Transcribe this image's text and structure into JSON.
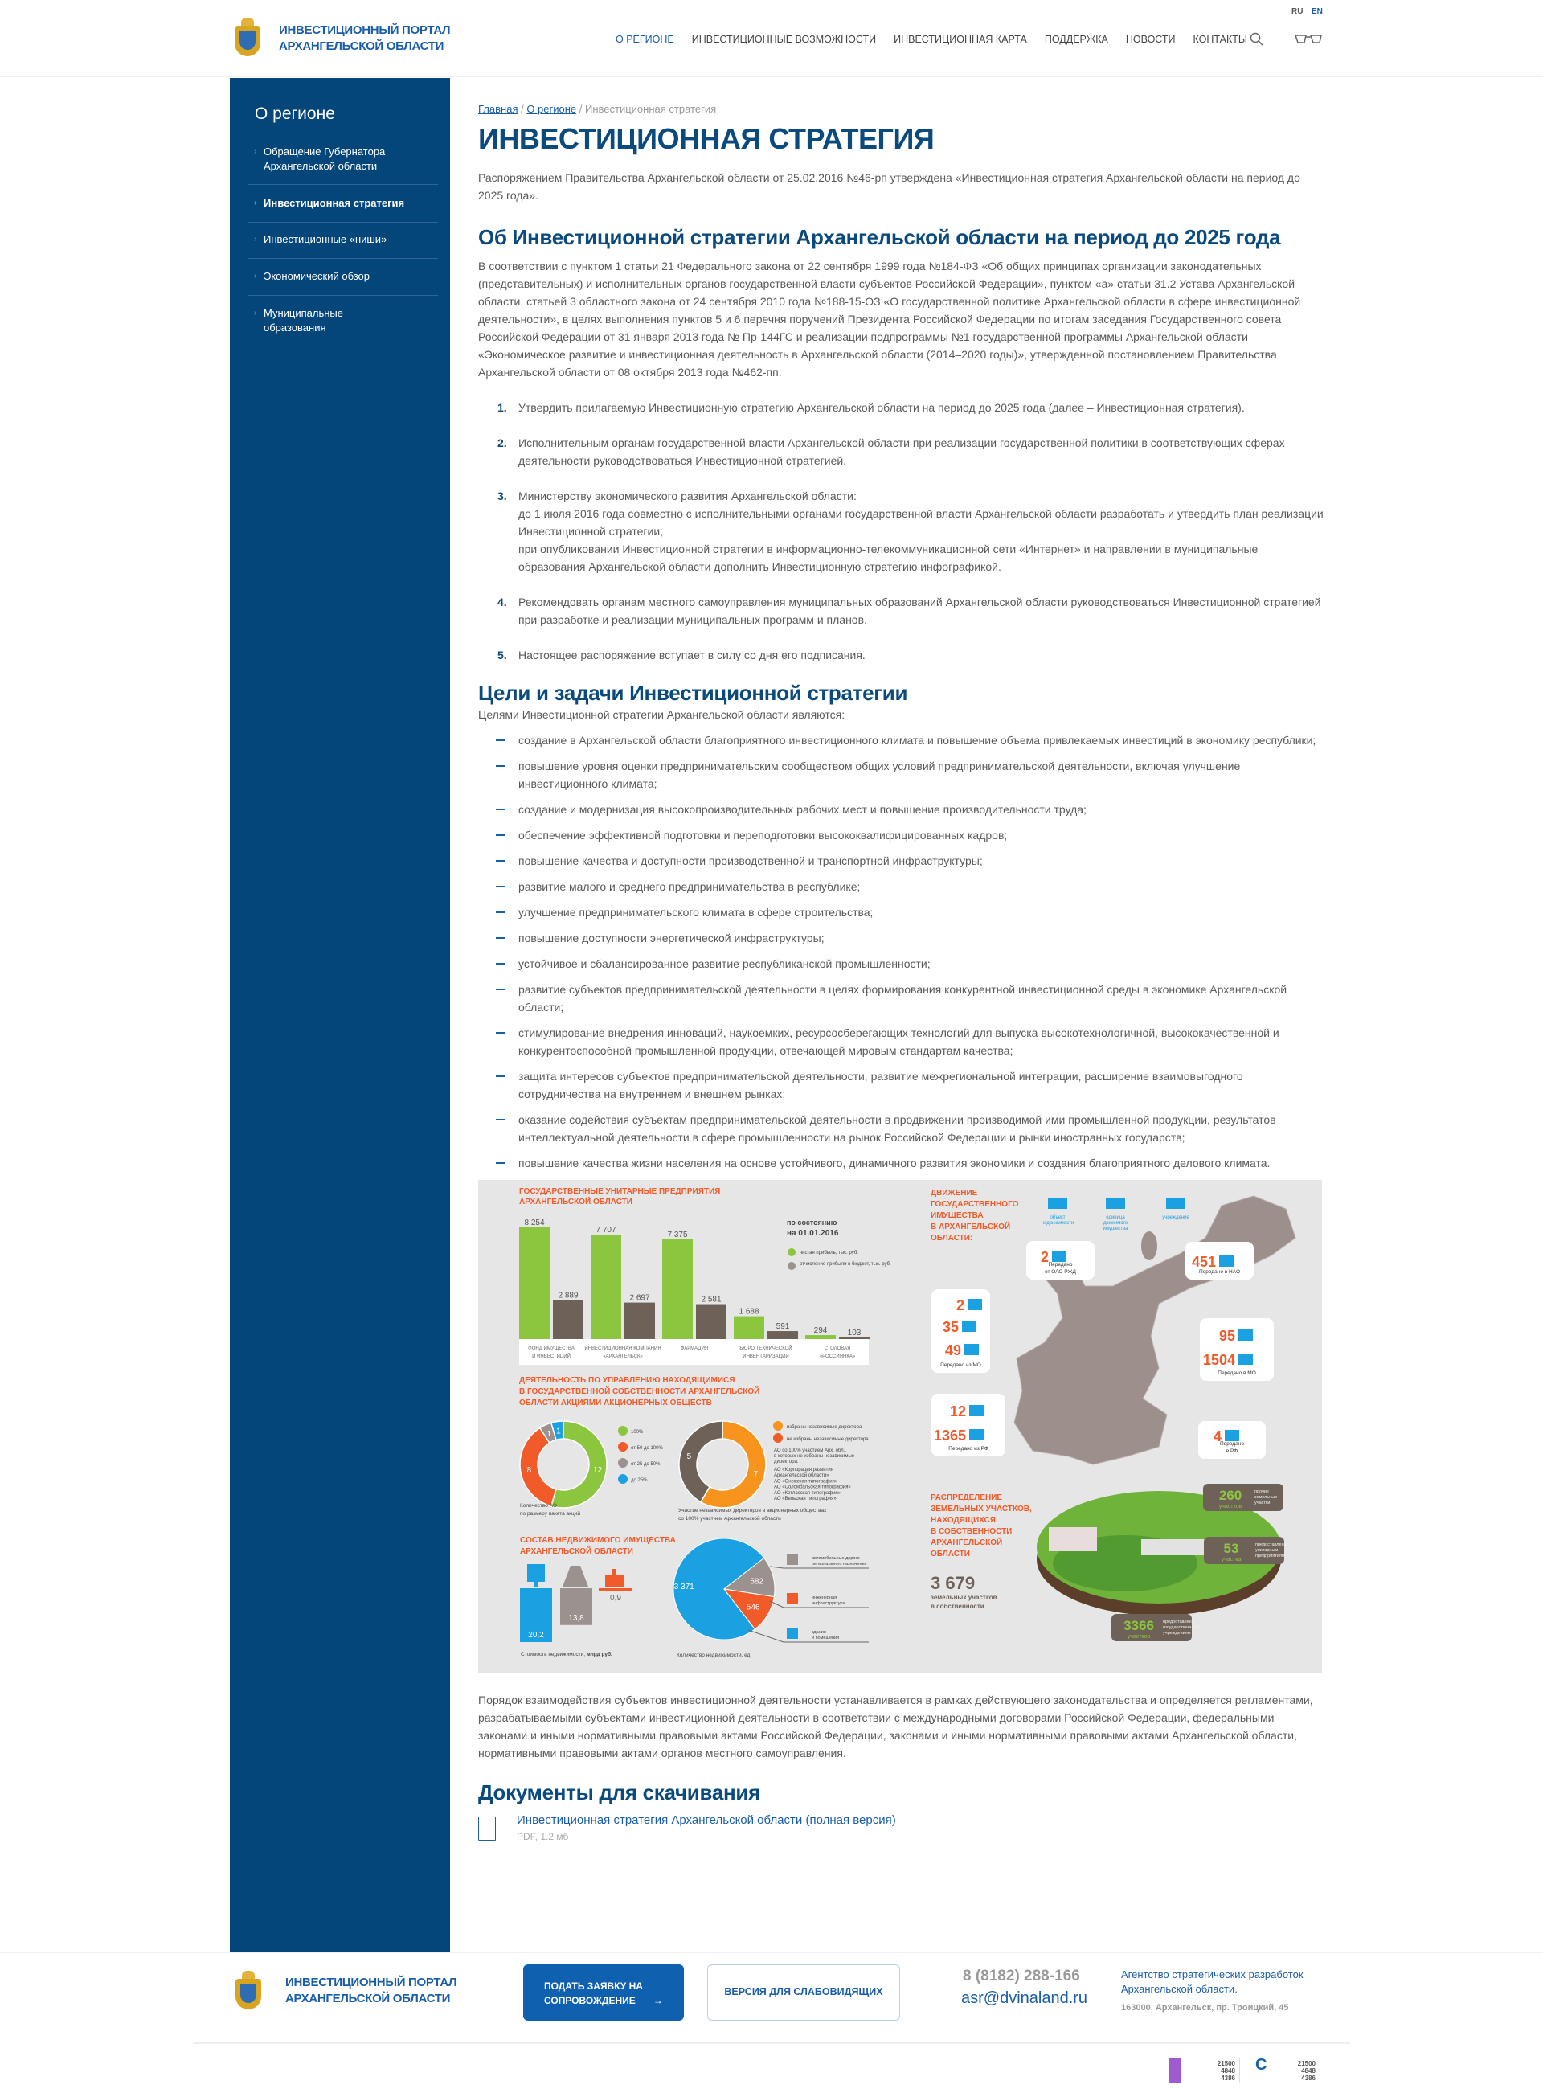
{
  "header": {
    "logo_line1": "ИНВЕСТИЦИОННЫЙ ПОРТАЛ",
    "logo_line2": "АРХАНГЕЛЬСКОЙ ОБЛАСТИ",
    "lang_ru": "RU",
    "lang_en": "EN",
    "nav": [
      "О регионе",
      "Инвестиционные возможности",
      "Инвестиционная карта",
      "Поддержка",
      "Новости",
      "Контакты"
    ],
    "search_icon": "search-icon",
    "accessibility_icon": "glasses-icon"
  },
  "sidebar": {
    "title": "О регионе",
    "items": [
      {
        "label": "Обращение Губернатора Архангельской области"
      },
      {
        "label": "Инвестиционная стратегия",
        "active": true
      },
      {
        "label": "Инвестиционные «ниши»"
      },
      {
        "label": "Экономический обзор"
      },
      {
        "label": "Муниципальные образования"
      }
    ]
  },
  "breadcrumb": {
    "home": "Главная",
    "section": "О регионе",
    "current": "Инвестиционная стратегия"
  },
  "page": {
    "title": "ИНВЕСТИЦИОННАЯ СТРАТЕГИЯ",
    "intro": "Распоряжением Правительства Архангельской области от 25.02.2016 №46-рп утверждена «Инвестиционная стратегия Архангельской области на период до 2025 года».",
    "about_heading": "Об Инвестиционной стратегии Архангельской области на период до 2025 года",
    "about_text": "В соответствии с пунктом 1 статьи 21 Федерального закона от 22 сентября 1999 года №184-ФЗ «Об общих принципах организации законодательных (представительных) и исполнительных органов государственной власти субъектов Российской Федерации», пунктом «а» статьи 31.2 Устава Архангельской области, статьей 3 областного закона от 24 сентября 2010 года №188-15-ОЗ «О государственной политике Архангельской области в сфере инвестиционной деятельности», в целях выполнения пунктов 5 и 6 перечня поручений Президента Российской Федерации по итогам заседания Государственного совета Российской Федерации от 31 января 2013 года № Пр-144ГС и реализации подпрограммы №1 государственной программы Архангельской области «Экономическое развитие и инвестиционная деятельность в Архангельской области (2014–2020 годы)», утвержденной постановлением Правительства Архангельской области от 08 октября 2013 года №462-пп:",
    "decisions": [
      {
        "num": "1.",
        "lines": [
          "Утвердить прилагаемую Инвестиционную стратегию Архангельской области на период до 2025 года (далее – Инвестиционная стратегия)."
        ]
      },
      {
        "num": "2.",
        "lines": [
          "Исполнительным органам государственной власти Архангельской области при реализации государственной политики в соответствующих сферах деятельности руководствоваться Инвестиционной стратегией."
        ]
      },
      {
        "num": "3.",
        "lines": [
          "Министерству экономического развития Архангельской области:",
          "до 1 июля 2016 года совместно с исполнительными органами государственной  власти Архангельской области разработать и утвердить план реализации Инвестиционной стратегии;",
          "при опубликовании Инвестиционной стратегии в информационно-телекоммуникационной сети «Интернет» и направлении в муниципальные",
          "образования Архангельской области дополнить Инвестиционную стратегию инфографикой."
        ]
      },
      {
        "num": "4.",
        "lines": [
          "Рекомендовать органам местного самоуправления муниципальных образований Архангельской области руководствоваться Инвестиционной стратегией при разработке и реализации муниципальных программ и планов."
        ]
      },
      {
        "num": "5.",
        "lines": [
          "Настоящее распоряжение вступает в силу со дня его подписания."
        ]
      }
    ],
    "goals_heading": "Цели и задачи Инвестиционной стратегии",
    "goals_intro": "Целями Инвестиционной стратегии Архангельской области являются:",
    "goals": [
      "создание в Архангельской области благоприятного инвестиционного климата и повышение объема привлекаемых инвестиций в экономику республики;",
      "повышение уровня оценки предпринимательским сообществом общих условий предпринимательской деятельности, включая улучшение инвестиционного климата;",
      "создание и модернизация высокопроизводительных рабочих мест и повышение производительности труда;",
      "обеспечение эффективной подготовки и переподготовки высококвалифицированных кадров;",
      "повышение качества и доступности производственной и транспортной инфраструктуры;",
      "развитие малого и среднего предпринимательства в республике;",
      "улучшение предпринимательского климата в сфере строительства;",
      "повышение доступности энергетической инфраструктуры;",
      "устойчивое и сбалансированное развитие республиканской  промышленности;",
      "развитие субъектов предпринимательской деятельности в целях формирования конкурентной инвестиционной среды в экономике Архангельской области;",
      "стимулирование внедрения инноваций, наукоемких, ресурсосберегающих технологий для выпуска высокотехнологичной, высококачественной и конкурентоспособной промышленной продукции, отвечающей мировым стандартам качества;",
      "защита интересов субъектов предпринимательской деятельности, развитие межрегиональной интеграции, расширение взаимовыгодного сотрудничества на внутреннем и внешнем рынках;",
      "оказание содействия субъектам предпринимательской деятельности в продвижении производимой ими промышленной продукции, результатов интеллектуальной деятельности в сфере промышленности на рынок Российской Федерации и рынки иностранных государств;",
      "повышение качества жизни населения на основе устойчивого, динамичного развития экономики и создания благоприятного делового климата."
    ],
    "closing_text": "Порядок взаимодействия субъектов инвестиционной деятельности устанавливается в рамках действующего законодательства и определяется регламентами, разрабатываемыми субъектами инвестиционной деятельности в соответствии с международными договорами Российской Федерации, федеральными законами и иными нормативными правовыми актами Российской Федерации, законами и иными нормативными правовыми актами Архангельской области, нормативными правовыми актами органов местного самоуправления.",
    "docs_heading": "Документы для скачивания",
    "doc_link": "Инвестиционная стратегия Архангельской области (полная версия)",
    "doc_meta": "PDF, 1.2 мб"
  },
  "chart_data": [
    {
      "type": "bar",
      "title": "ГОСУДАРСТВЕННЫЕ УНИТАРНЫЕ ПРЕДПРИЯТИЯ АРХАНГЕЛЬСКОЙ ОБЛАСТИ",
      "subtitle": "по состоянию на 01.01.2016",
      "categories": [
        "ФОНД ИМУЩЕСТВА И ИНВЕСТИЦИЙ",
        "ИНВЕСТИЦИОННАЯ КОМПАНИЯ «АРХАНГЕЛЬСК»",
        "ФАРМАЦИЯ",
        "БЮРО ТЕХНИЧЕСКОЙ ИНВЕНТАРИЗАЦИИ",
        "СТОЛОВАЯ «РОССИЯНКА»"
      ],
      "series": [
        {
          "name": "чистая прибыль, тыс. руб.",
          "color": "#8cc63f",
          "values": [
            8254,
            7707,
            7375,
            1688,
            294
          ],
          "labels": [
            "8 254",
            "7 707",
            "7 375",
            "1 688",
            "294"
          ]
        },
        {
          "name": "отчисление прибыли в бюджет, тыс. руб.",
          "color": "#6e6158",
          "values": [
            2889,
            2697,
            2581,
            591,
            103
          ],
          "labels": [
            "2 889",
            "2 697",
            "2 581",
            "591",
            "103"
          ]
        }
      ]
    },
    {
      "type": "pie",
      "title": "Количество АО по размеру пакета акций",
      "slices": [
        {
          "name": "100%",
          "value": 12,
          "color": "#8cc63f"
        },
        {
          "name": "от 50 до 100%",
          "value": 8,
          "color": "#f15a29"
        },
        {
          "name": "от 25 до 50%",
          "value": 1,
          "color": "#9b918e"
        },
        {
          "name": "до 25%",
          "value": 1,
          "color": "#1ba1e2"
        }
      ]
    },
    {
      "type": "pie",
      "title": "Участие независимых директоров в акционерных обществах со 100% участием Архангельской области",
      "slices": [
        {
          "name": "избраны независимые директора",
          "value": 7,
          "color": "#f7941d"
        },
        {
          "name": "не избраны независимые директора",
          "value": 5,
          "color": "#6e6158"
        }
      ]
    },
    {
      "type": "bar",
      "title": "Стоимость недвижимости, млрд руб.",
      "categories": [
        "здания и помещения",
        "автомобильные дороги",
        "инженерная инфраструктура"
      ],
      "values": [
        20.2,
        13.8,
        0.9
      ],
      "labels": [
        "20,2",
        "13,8",
        "0,9"
      ]
    },
    {
      "type": "pie",
      "title": "Количество недвижимости, ед.",
      "slices": [
        {
          "name": "здания и помещения",
          "value": 3371,
          "label": "3 371",
          "color": "#1ba1e2"
        },
        {
          "name": "автомобильные дороги регионального назначения",
          "value": 582,
          "label": "582",
          "color": "#9b918e"
        },
        {
          "name": "инженерная инфраструктура",
          "value": 546,
          "label": "546",
          "color": "#f15a29"
        }
      ]
    }
  ],
  "infographic": {
    "sec2_title": [
      "ДЕЯТЕЛЬНОСТЬ ПО УПРАВЛЕНИЮ НАХОДЯЩИМИСЯ",
      "В ГОСУДАРСТВЕННОЙ СОБСТВЕННОСТИ АРХАНГЕЛЬСКОЙ",
      "ОБЛАСТИ АКЦИЯМИ АКЦИОНЕРНЫХ ОБЩЕСТВ"
    ],
    "donut1_caption": [
      "Количество АО",
      "по размеру пакета акций"
    ],
    "donut2_caption": [
      "Участие независимых директоров в акционерных обществах",
      "со 100% участием Архангельской области"
    ],
    "ao_note": [
      "АО со 100% участием Арх. обл.,",
      "в которых не избраны независимые",
      "директора:"
    ],
    "ao_list": [
      "АО «Корпорация развития",
      "Архангельской области»",
      "АО «Онежская типография»",
      "АО «Соломбальская типография»",
      "АО «Котласская типография»",
      "АО «Вельская типография»"
    ],
    "sec3_title": [
      "СОСТАВ НЕДВИЖИМОГО ИМУЩЕСТВА",
      "АРХАНГЕЛЬСКОЙ ОБЛАСТИ"
    ],
    "realty_cost_caption_a": "Стоимость недвижимости, ",
    "realty_cost_caption_b": "млрд руб.",
    "realty_legend": [
      [
        "автомобильные дороги",
        "регионального назначения"
      ],
      [
        "инженерная",
        "инфраструктура"
      ],
      [
        "здания",
        "и помещения"
      ]
    ],
    "movement_title": [
      "ДВИЖЕНИЕ",
      "ГОСУДАРСТВЕННОГО",
      "ИМУЩЕСТВА",
      "В АРХАНГЕЛЬСКОЙ",
      "ОБЛАСТИ:"
    ],
    "movement_legend": [
      [
        "объект",
        "недвижимости"
      ],
      [
        "единица",
        "движимого",
        "имущества"
      ],
      [
        "учреждение"
      ]
    ],
    "movement": {
      "rzd": {
        "n": "2",
        "caption": [
          "Передано",
          "от ОАО РЖД"
        ]
      },
      "from_mo": {
        "inst": "2",
        "realty": "35",
        "movable": "49",
        "caption": "Передано из МО"
      },
      "to_nao": {
        "movable": "451",
        "caption": "Передано в НАО"
      },
      "to_mo": {
        "realty": "95",
        "movable": "1504",
        "caption": "Передано в МО"
      },
      "from_rf": {
        "realty": "12",
        "movable": "1365",
        "caption": "Передано из РФ"
      },
      "to_rf": {
        "realty": "4",
        "caption": [
          "Передано",
          "в РФ"
        ]
      }
    },
    "land_title": [
      "РАСПРЕДЕЛЕНИЕ",
      "ЗЕМЕЛЬНЫХ УЧАСТКОВ,",
      "НАХОДЯЩИХСЯ",
      "В СОБСТВЕННОСТИ",
      "АРХАНГЕЛЬСКОЙ",
      "ОБЛАСТИ"
    ],
    "land_total": "3 679",
    "land_total_caption": [
      "земельных участков",
      "в собственности"
    ],
    "land": [
      {
        "n": "260",
        "unit": "участков",
        "text": [
          "прочие",
          "земельные",
          "участки"
        ]
      },
      {
        "n": "53",
        "unit": "участка",
        "text": [
          "предоставлены",
          "унитарным",
          "предприятиям"
        ]
      },
      {
        "n": "3366",
        "unit": "участков",
        "text": [
          "предоставлены",
          "государственным",
          "учреждениям"
        ]
      }
    ]
  },
  "footer": {
    "logo_line1": "ИНВЕСТИЦИОННЫЙ ПОРТАЛ",
    "logo_line2": "АРХАНГЕЛЬСКОЙ ОБЛАСТИ",
    "apply_line1": "ПОДАТЬ ЗАЯВКУ НА",
    "apply_line2": "СОПРОВОЖДЕНИЕ",
    "accessibility": "ВЕРСИЯ ДЛЯ СЛАБОВИДЯЩИХ",
    "phone": "8 (8182) 288-166",
    "email": "asr@dvinaland.ru",
    "agency": "Агентство стратегических разработок Архангельской области.",
    "address": "163000, Архангельск, пр. Троицкий, 45",
    "counters": [
      [
        "21500",
        "4848",
        "4386"
      ],
      [
        "21500",
        "4848",
        "4386"
      ]
    ]
  },
  "colors": {
    "brand": "#04467a",
    "link": "#1a5ea8",
    "accent_orange": "#f15a29",
    "green": "#8cc63f",
    "brown": "#6e6158",
    "blue": "#1ba1e2"
  }
}
